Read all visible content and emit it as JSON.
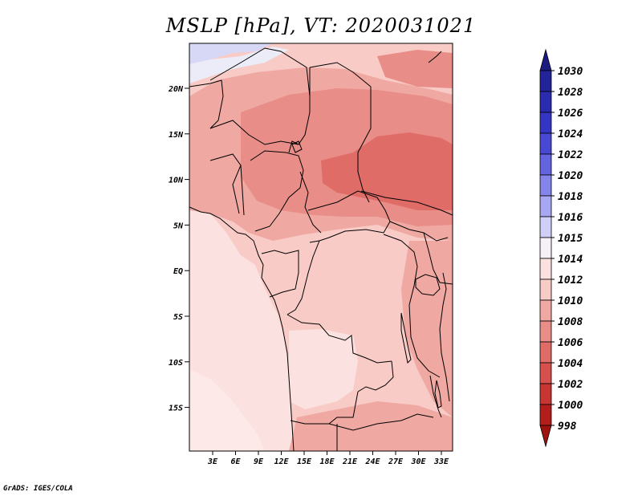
{
  "title": "MSLP [hPa], VT: 2020031021",
  "credit": "GrADS: IGES/COLA",
  "map": {
    "lat_labels": [
      "20N",
      "15N",
      "10N",
      "5N",
      "EQ",
      "5S",
      "10S",
      "15S"
    ],
    "lon_labels": [
      "3E",
      "6E",
      "9E",
      "12E",
      "15E",
      "18E",
      "21E",
      "24E",
      "27E",
      "30E",
      "33E"
    ]
  },
  "colorbar": {
    "levels": [
      "1030",
      "1028",
      "1026",
      "1024",
      "1022",
      "1020",
      "1018",
      "1016",
      "1015",
      "1014",
      "1012",
      "1010",
      "1008",
      "1006",
      "1004",
      "1002",
      "1000",
      "998"
    ],
    "colors": [
      "#1a1a80",
      "#23239a",
      "#2b2bb0",
      "#3535c4",
      "#4848d4",
      "#6464e0",
      "#8484ea",
      "#a8a8f2",
      "#cfcff8",
      "#f4f0f5",
      "#fbe2e0",
      "#f8cbc7",
      "#efa8a2",
      "#e88d87",
      "#e06c68",
      "#d8504e",
      "#c93532",
      "#b31e1c",
      "#9e1210"
    ],
    "min_arrow": "#9e1210",
    "max_arrow": "#1a1a80"
  }
}
